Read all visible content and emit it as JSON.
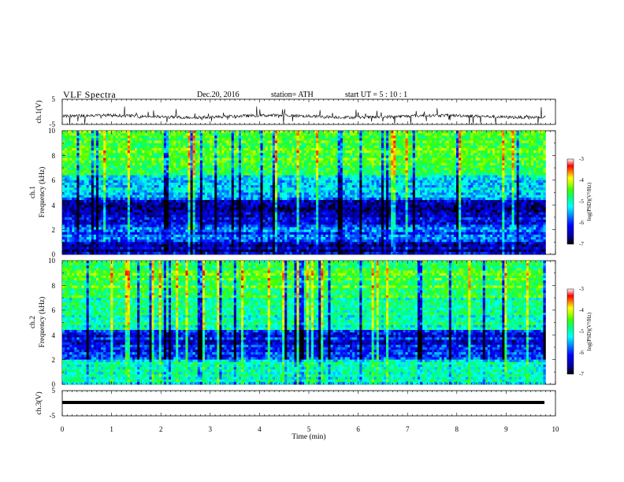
{
  "header": {
    "title": "VLF  Spectra",
    "date": "Dec.20, 2016",
    "station": "station= ATH",
    "start": "start  UT  =    5  : 10 : 1"
  },
  "colorbar_label": "log(PSD)(V²/Hz)",
  "colors": {
    "spectro_scale": [
      "#000000",
      "#0000a0",
      "#0000ff",
      "#0080ff",
      "#00ffff",
      "#00ff80",
      "#40ff00",
      "#c0ff00",
      "#ffff00",
      "#ff8000",
      "#ff0000",
      "#ffffff"
    ]
  },
  "chart_data": [
    {
      "type": "line",
      "name": "ch1-waveform",
      "ylabel": "ch.1(V)",
      "ylim": [
        -5,
        5
      ],
      "yticks": [
        "5",
        "-5"
      ],
      "xlim": [
        0,
        10
      ],
      "baseline": -1.8
    },
    {
      "type": "heatmap",
      "name": "ch1-spectrogram",
      "ylabel": "ch.1\nFrequency  (kHz)",
      "ylim": [
        0,
        10
      ],
      "yticks": [
        "10",
        "8",
        "6",
        "4",
        "2",
        "0"
      ],
      "xlim": [
        0,
        9.8
      ],
      "zlim": [
        -7,
        -3
      ],
      "colorbar_ticks": [
        "-3",
        "-4",
        "-5",
        "-6",
        "-7"
      ],
      "bands_khz": [
        {
          "from": 0,
          "to": 1,
          "level": -6.5
        },
        {
          "from": 1,
          "to": 2.5,
          "level": -6.0
        },
        {
          "from": 2.5,
          "to": 4.5,
          "level": -6.4
        },
        {
          "from": 4.5,
          "to": 6.5,
          "level": -5.6
        },
        {
          "from": 6.5,
          "to": 10,
          "level": -4.6
        }
      ]
    },
    {
      "type": "heatmap",
      "name": "ch2-spectrogram",
      "ylabel": "ch.2\nFrequency  (kHz)",
      "ylim": [
        0,
        10
      ],
      "yticks": [
        "10",
        "8",
        "6",
        "4",
        "2",
        "0"
      ],
      "xlim": [
        0,
        9.8
      ],
      "zlim": [
        -7,
        -3
      ],
      "colorbar_ticks": [
        "-3",
        "-4",
        "-5",
        "-6",
        "-7"
      ],
      "bands_khz": [
        {
          "from": 0,
          "to": 2,
          "level": -5.2
        },
        {
          "from": 2,
          "to": 4.5,
          "level": -6.2
        },
        {
          "from": 4.5,
          "to": 7,
          "level": -5.1
        },
        {
          "from": 7,
          "to": 10,
          "level": -4.7
        }
      ]
    },
    {
      "type": "line",
      "name": "ch3-waveform",
      "ylabel": "ch.3(V)",
      "ylim": [
        -5,
        5
      ],
      "yticks": [
        "5",
        "-5"
      ],
      "xlim": [
        0,
        10
      ],
      "baseline": -1.8
    }
  ],
  "xaxis": {
    "label": "Time  (min)",
    "ticks": [
      "0",
      "1",
      "2",
      "3",
      "4",
      "5",
      "6",
      "7",
      "8",
      "9",
      "10"
    ]
  }
}
